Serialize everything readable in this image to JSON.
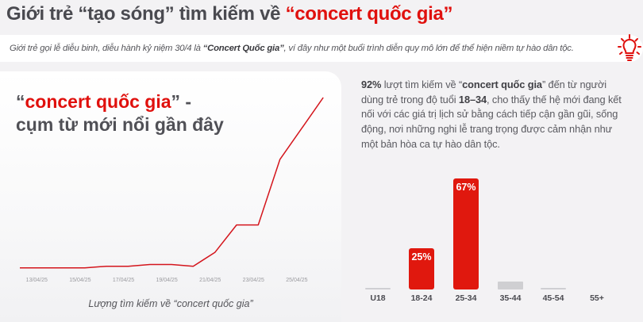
{
  "header": {
    "title_prefix": "Giới trẻ “tạo sóng” tìm kiếm về ",
    "title_highlight": "“concert quốc gia”"
  },
  "banner": {
    "text_before": "Giới trẻ gọi lễ diễu binh, diễu hành kỷ niệm 30/4 là ",
    "text_bold": "“Concert Quốc gia”",
    "text_after": ", ví đây như một buổi trình diễn quy mô lớn để thể hiện niềm tự hào dân tộc.",
    "icon": "lightbulb-icon"
  },
  "left_card": {
    "heading_open_quote": "“",
    "heading_highlight": "concert quốc gia",
    "heading_close": "” -",
    "heading_line2": "cụm từ mới nổi gần đây",
    "caption": "Lượng tìm kiếm về “concert quốc gia”"
  },
  "right_panel": {
    "p_bold1": "92%",
    "p_t1": " lượt tìm kiếm về “",
    "p_bold2": "concert quốc gia",
    "p_t2": "” đến từ người dùng trẻ trong độ tuổi ",
    "p_bold3": "18–34",
    "p_t3": ", cho thấy thế hệ mới đang kết nối với các giá trị lịch sử bằng cách tiếp cận gần gũi, sống động, nơi những nghi lễ trang trọng được cảm nhận như một bản hòa ca tự hào dân tộc."
  },
  "colors": {
    "accent": "#e0100d",
    "bar_red": "#e0180e",
    "bar_grey": "#cfcfd2",
    "text": "#4a4a50",
    "background": "#f3f2f4"
  },
  "chart_data": [
    {
      "type": "line",
      "title": "Lượng tìm kiếm về “concert quốc gia”",
      "xlabel": "",
      "ylabel": "",
      "x_tick_labels": [
        "13/04/25",
        "15/04/25",
        "17/04/25",
        "19/04/25",
        "21/04/25",
        "23/04/25",
        "25/04/25"
      ],
      "x": [
        "12/04/25",
        "13/04/25",
        "14/04/25",
        "15/04/25",
        "16/04/25",
        "17/04/25",
        "18/04/25",
        "19/04/25",
        "20/04/25",
        "21/04/25",
        "22/04/25",
        "23/04/25",
        "24/04/25",
        "25/04/25",
        "26/04/25"
      ],
      "values": [
        1,
        1,
        1,
        1,
        2,
        2,
        3,
        3,
        2,
        10,
        26,
        26,
        64,
        82,
        100
      ],
      "y_axis": "hidden (relative index 0–100, estimated)",
      "grid": false,
      "legend": "none",
      "color": "#e0100d"
    },
    {
      "type": "bar",
      "categories": [
        "U18",
        "18-24",
        "25-34",
        "35-44",
        "45-54",
        "55+"
      ],
      "values": [
        1,
        25,
        67,
        5,
        1,
        0
      ],
      "data_labels": [
        "",
        "25%",
        "67%",
        "",
        "",
        ""
      ],
      "highlight": [
        "18-24",
        "25-34"
      ],
      "ylabel": "",
      "ylim": [
        0,
        70
      ],
      "grid": false,
      "legend": "none"
    }
  ]
}
